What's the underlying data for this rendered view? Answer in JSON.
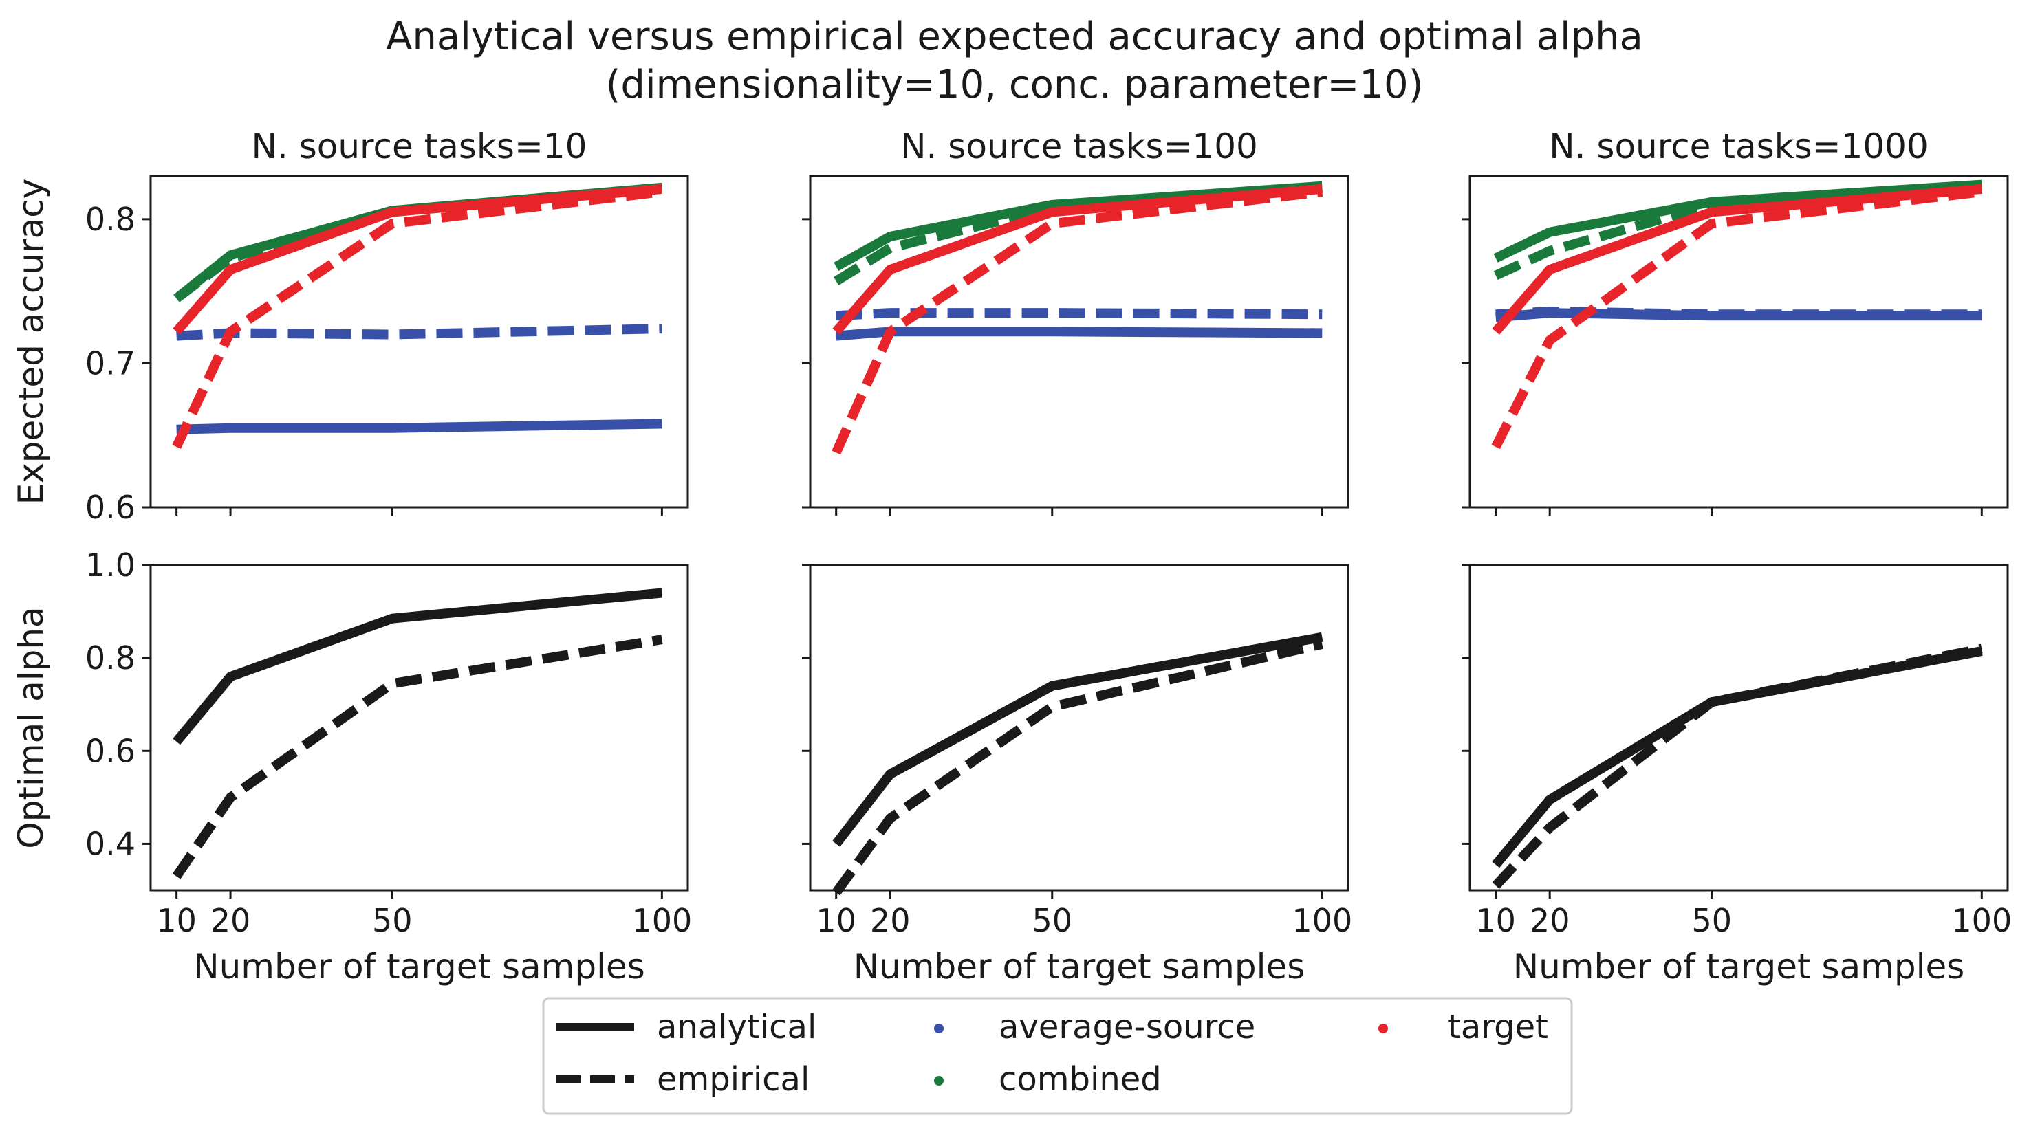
{
  "figure": {
    "title_line1": "Analytical versus empirical expected accuracy and optimal alpha",
    "title_line2": "(dimensionality=10, conc. parameter=10)"
  },
  "colors": {
    "average-source": "#3850a8",
    "combined": "#1a7a3c",
    "target": "#e8242b",
    "alpha": "#1a1a1a"
  },
  "legend": {
    "analytical": "analytical",
    "empirical": "empirical",
    "average_source": "average-source",
    "combined": "combined",
    "target": "target"
  },
  "chart_data": [
    {
      "type": "line",
      "title": "N. source tasks=10",
      "xlabel": "",
      "ylabel": "Expected accuracy",
      "x": [
        10,
        20,
        50,
        100
      ],
      "ylim": [
        0.6,
        0.83
      ],
      "yticks": [
        0.6,
        0.7,
        0.8
      ],
      "series": [
        {
          "name": "average-source",
          "style": "analytical",
          "values": [
            0.654,
            0.655,
            0.655,
            0.658
          ]
        },
        {
          "name": "average-source",
          "style": "empirical",
          "values": [
            0.719,
            0.721,
            0.72,
            0.724
          ]
        },
        {
          "name": "combined",
          "style": "analytical",
          "values": [
            0.745,
            0.775,
            0.806,
            0.822
          ]
        },
        {
          "name": "combined",
          "style": "empirical",
          "values": [
            0.745,
            0.773,
            0.805,
            0.821
          ]
        },
        {
          "name": "target",
          "style": "analytical",
          "values": [
            0.722,
            0.765,
            0.805,
            0.821
          ]
        },
        {
          "name": "target",
          "style": "empirical",
          "values": [
            0.642,
            0.722,
            0.797,
            0.819
          ]
        }
      ]
    },
    {
      "type": "line",
      "title": "N. source tasks=100",
      "xlabel": "",
      "ylabel": "",
      "x": [
        10,
        20,
        50,
        100
      ],
      "ylim": [
        0.6,
        0.83
      ],
      "series": [
        {
          "name": "average-source",
          "style": "analytical",
          "values": [
            0.719,
            0.722,
            0.722,
            0.721
          ]
        },
        {
          "name": "average-source",
          "style": "empirical",
          "values": [
            0.733,
            0.735,
            0.735,
            0.734
          ]
        },
        {
          "name": "combined",
          "style": "analytical",
          "values": [
            0.767,
            0.788,
            0.81,
            0.823
          ]
        },
        {
          "name": "combined",
          "style": "empirical",
          "values": [
            0.757,
            0.78,
            0.808,
            0.822
          ]
        },
        {
          "name": "target",
          "style": "analytical",
          "values": [
            0.722,
            0.765,
            0.805,
            0.821
          ]
        },
        {
          "name": "target",
          "style": "empirical",
          "values": [
            0.638,
            0.722,
            0.797,
            0.819
          ]
        }
      ]
    },
    {
      "type": "line",
      "title": "N. source tasks=1000",
      "xlabel": "",
      "ylabel": "",
      "x": [
        10,
        20,
        50,
        100
      ],
      "ylim": [
        0.6,
        0.83
      ],
      "series": [
        {
          "name": "average-source",
          "style": "analytical",
          "values": [
            0.732,
            0.735,
            0.733,
            0.733
          ]
        },
        {
          "name": "average-source",
          "style": "empirical",
          "values": [
            0.734,
            0.736,
            0.734,
            0.734
          ]
        },
        {
          "name": "combined",
          "style": "analytical",
          "values": [
            0.773,
            0.791,
            0.812,
            0.824
          ]
        },
        {
          "name": "combined",
          "style": "empirical",
          "values": [
            0.761,
            0.778,
            0.81,
            0.823
          ]
        },
        {
          "name": "target",
          "style": "analytical",
          "values": [
            0.722,
            0.765,
            0.805,
            0.821
          ]
        },
        {
          "name": "target",
          "style": "empirical",
          "values": [
            0.642,
            0.716,
            0.797,
            0.819
          ]
        }
      ]
    },
    {
      "type": "line",
      "title": "",
      "xlabel": "Number of target samples",
      "ylabel": "Optimal alpha",
      "x": [
        10,
        20,
        50,
        100
      ],
      "xticks": [
        10,
        20,
        50,
        100
      ],
      "ylim": [
        0.3,
        1.0
      ],
      "yticks": [
        0.4,
        0.6,
        0.8,
        1.0
      ],
      "series": [
        {
          "name": "analytical",
          "style": "analytical",
          "values": [
            0.62,
            0.76,
            0.885,
            0.94
          ]
        },
        {
          "name": "empirical",
          "style": "empirical",
          "values": [
            0.33,
            0.5,
            0.745,
            0.84
          ]
        }
      ]
    },
    {
      "type": "line",
      "title": "",
      "xlabel": "Number of target samples",
      "ylabel": "",
      "x": [
        10,
        20,
        50,
        100
      ],
      "xticks": [
        10,
        20,
        50,
        100
      ],
      "ylim": [
        0.3,
        1.0
      ],
      "series": [
        {
          "name": "analytical",
          "style": "analytical",
          "values": [
            0.4,
            0.55,
            0.74,
            0.845
          ]
        },
        {
          "name": "empirical",
          "style": "empirical",
          "values": [
            0.295,
            0.455,
            0.695,
            0.83
          ]
        }
      ]
    },
    {
      "type": "line",
      "title": "",
      "xlabel": "Number of target samples",
      "ylabel": "",
      "x": [
        10,
        20,
        50,
        100
      ],
      "xticks": [
        10,
        20,
        50,
        100
      ],
      "ylim": [
        0.3,
        1.0
      ],
      "series": [
        {
          "name": "analytical",
          "style": "analytical",
          "values": [
            0.355,
            0.495,
            0.705,
            0.815
          ]
        },
        {
          "name": "empirical",
          "style": "empirical",
          "values": [
            0.31,
            0.435,
            0.705,
            0.82
          ]
        }
      ]
    }
  ]
}
